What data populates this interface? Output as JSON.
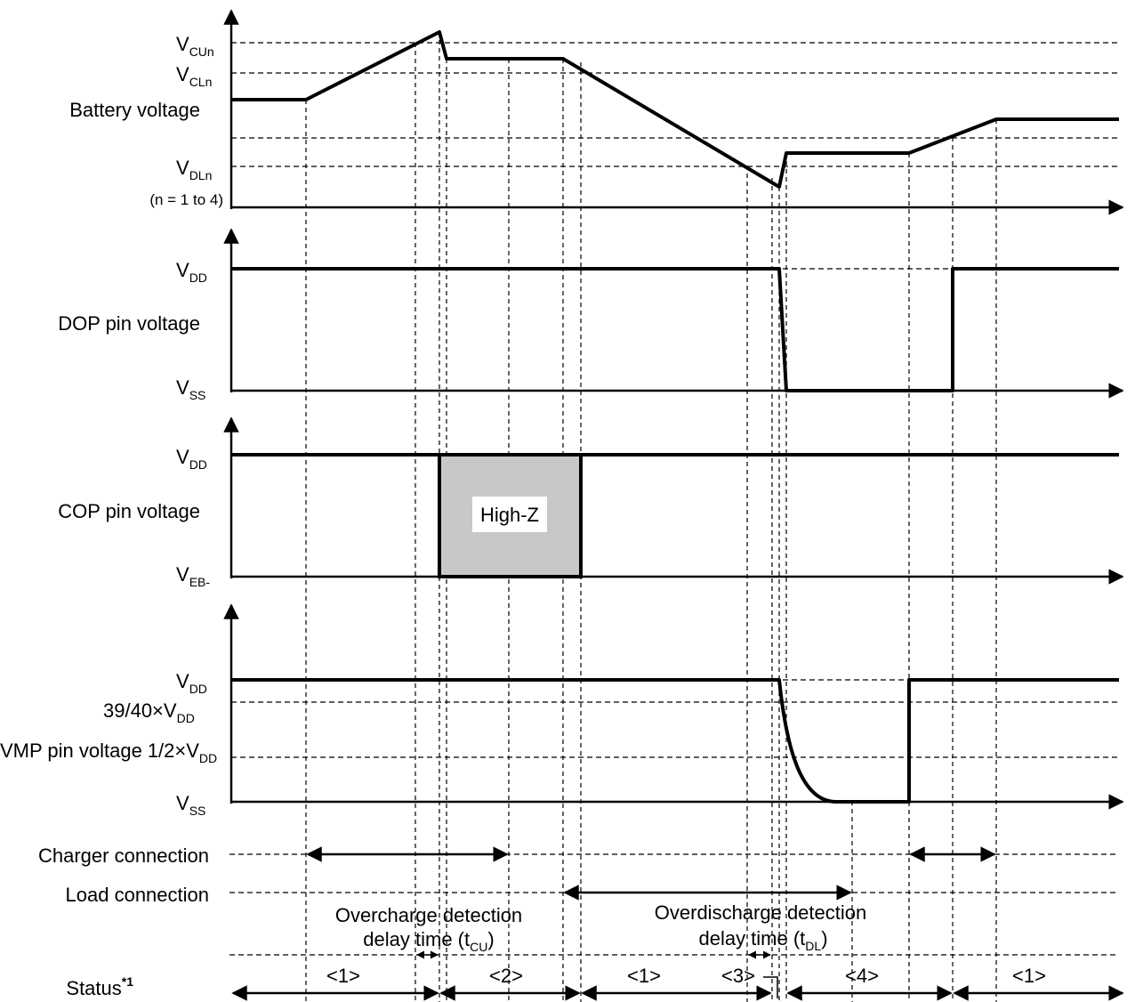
{
  "signals": {
    "battery": {
      "label": "Battery voltage",
      "refs": {
        "vcu": "V",
        "vcu_sub": "CUn",
        "vcl": "V",
        "vcl_sub": "CLn",
        "vdl": "V",
        "vdl_sub": "DLn"
      },
      "note": "(n = 1 to 4)"
    },
    "dop": {
      "label": "DOP pin voltage",
      "vdd": "V",
      "vdd_sub": "DD",
      "vss": "V",
      "vss_sub": "SS"
    },
    "cop": {
      "label": "COP pin voltage",
      "vdd": "V",
      "vdd_sub": "DD",
      "veb": "V",
      "veb_sub": "EB-",
      "highz": "High-Z"
    },
    "vmp": {
      "label": "VMP pin voltage",
      "vdd": "V",
      "vdd_sub": "DD",
      "ratio_3940": "39/40×V",
      "ratio_3940_sub": "DD",
      "ratio_half": "1/2×V",
      "ratio_half_sub": "DD",
      "vss": "V",
      "vss_sub": "SS"
    }
  },
  "connections": {
    "charger": "Charger connection",
    "load": "Load connection"
  },
  "delays": {
    "overcharge_line1": "Overcharge detection",
    "overcharge_line2": "delay time (t",
    "overcharge_sub": "CU",
    "overcharge_close": ")",
    "overdischarge_line1": "Overdischarge detection",
    "overdischarge_line2": "delay time (t",
    "overdischarge_sub": "DL",
    "overdischarge_close": ")"
  },
  "status": {
    "label": "Status",
    "footnote": "*1",
    "states": [
      "<1>",
      "<2>",
      "<1>",
      "<3>",
      "<4>",
      "<1>"
    ]
  }
}
